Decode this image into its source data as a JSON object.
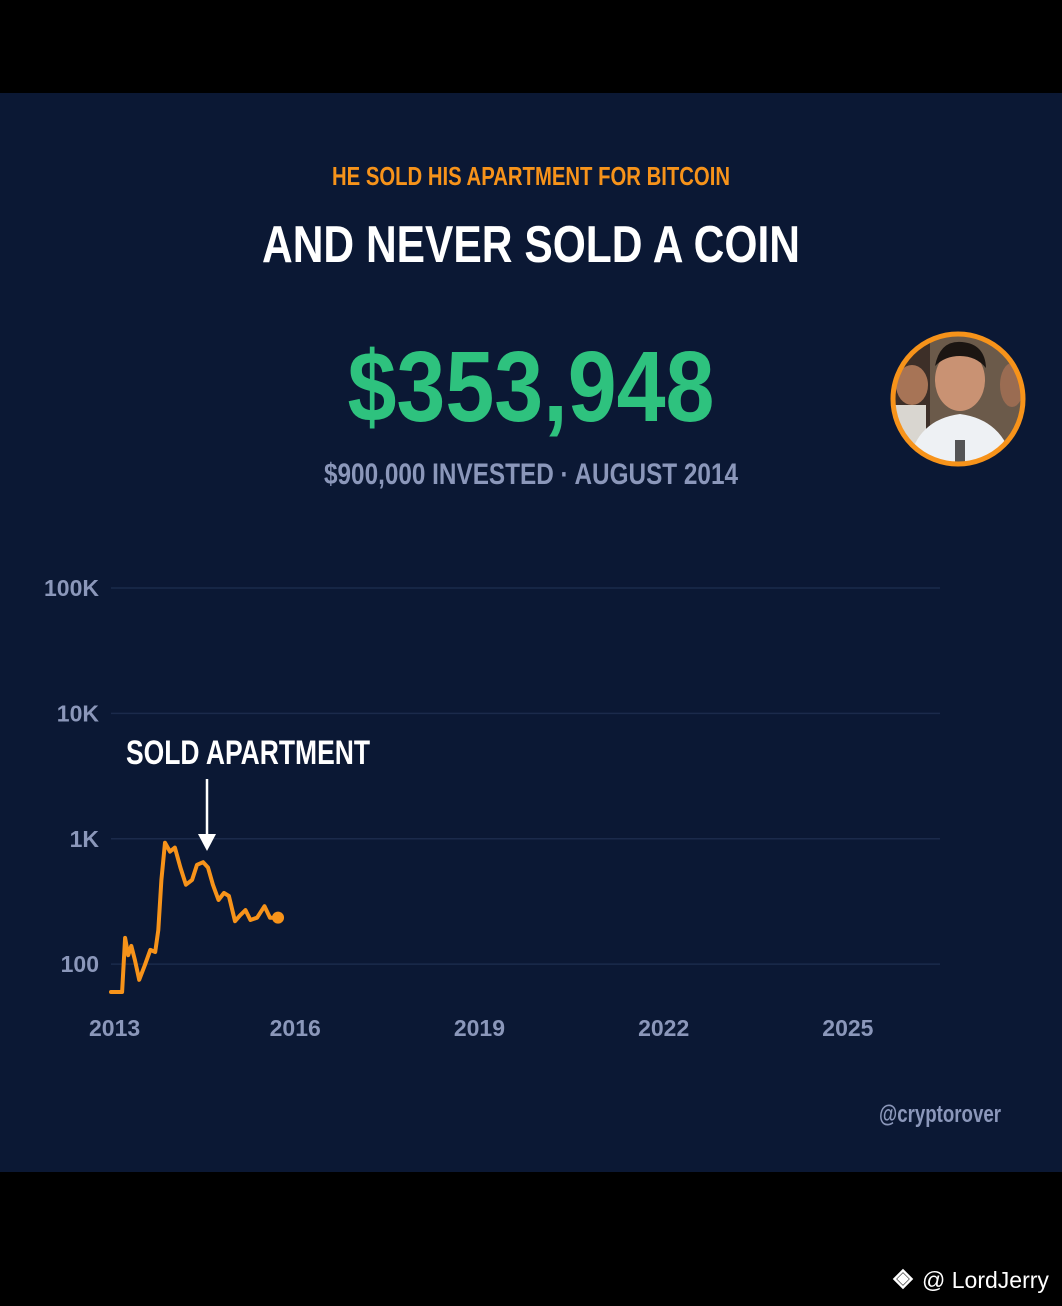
{
  "chart_data": {
    "type": "line",
    "kicker": "HE SOLD HIS APARTMENT FOR BITCOIN",
    "title": "AND NEVER SOLD A COIN",
    "headline": "$353,948",
    "subtitle": "$900,000 INVESTED · AUGUST 2014",
    "annotation": "SOLD APARTMENT",
    "credit": "@cryptorover",
    "x": [
      2013.0,
      2013.18,
      2013.23,
      2013.28,
      2013.33,
      2013.39,
      2013.46,
      2013.55,
      2013.64,
      2013.72,
      2013.77,
      2013.82,
      2013.88,
      2013.96,
      2014.04,
      2014.13,
      2014.22,
      2014.32,
      2014.4,
      2014.5,
      2014.58,
      2014.66,
      2014.75,
      2014.84,
      2014.92,
      2015.02,
      2015.1,
      2015.19,
      2015.27,
      2015.38,
      2015.5,
      2015.59,
      2015.72
    ],
    "values": [
      60,
      60,
      162,
      118,
      140,
      108,
      75,
      98,
      130,
      125,
      187,
      470,
      930,
      790,
      850,
      590,
      430,
      470,
      620,
      650,
      590,
      430,
      325,
      370,
      350,
      220,
      245,
      270,
      225,
      235,
      290,
      235,
      235
    ],
    "color": "#f7931a",
    "yscale": "log",
    "xlim": [
      2013,
      2026.5
    ],
    "ylim": [
      60,
      100000
    ],
    "xticks": [
      2013,
      2016,
      2019,
      2022,
      2025
    ],
    "yticks": [
      {
        "value": 100000,
        "label": "100K"
      },
      {
        "value": 10000,
        "label": "10K"
      },
      {
        "value": 1000,
        "label": "1K"
      },
      100
    ],
    "grid": true
  },
  "watermark": "@ LordJerry"
}
